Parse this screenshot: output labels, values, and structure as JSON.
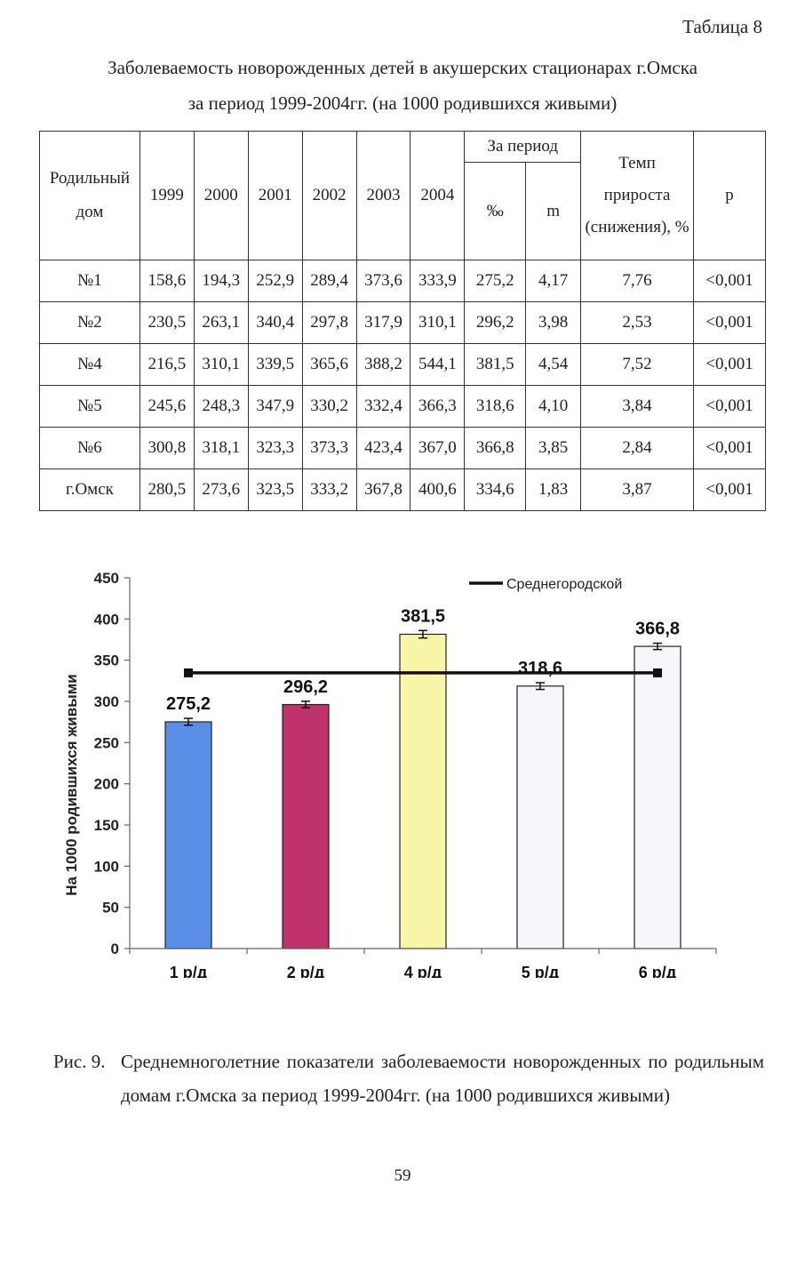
{
  "table_label": "Таблица 8",
  "table_title_line1": "Заболеваемость новорожденных детей в акушерских стационарах  г.Омска",
  "table_title_line2": "за период 1999-2004гг. (на 1000 родившихся живыми)",
  "table": {
    "headers": {
      "hospital": "Родильный дом",
      "years": [
        "1999",
        "2000",
        "2001",
        "2002",
        "2003",
        "2004"
      ],
      "period": "За период",
      "permille": "‰",
      "m": "m",
      "growth_rate": "Темп прироста (снижения), %",
      "p": "p"
    },
    "rows": [
      {
        "name": "№1",
        "values": [
          "158,6",
          "194,3",
          "252,9",
          "289,4",
          "373,6",
          "333,9"
        ],
        "permille": "275,2",
        "m": "4,17",
        "rate": "7,76",
        "p": "<0,001"
      },
      {
        "name": "№2",
        "values": [
          "230,5",
          "263,1",
          "340,4",
          "297,8",
          "317,9",
          "310,1"
        ],
        "permille": "296,2",
        "m": "3,98",
        "rate": "2,53",
        "p": "<0,001"
      },
      {
        "name": "№4",
        "values": [
          "216,5",
          "310,1",
          "339,5",
          "365,6",
          "388,2",
          "544,1"
        ],
        "permille": "381,5",
        "m": "4,54",
        "rate": "7,52",
        "p": "<0,001"
      },
      {
        "name": "№5",
        "values": [
          "245,6",
          "248,3",
          "347,9",
          "330,2",
          "332,4",
          "366,3"
        ],
        "permille": "318,6",
        "m": "4,10",
        "rate": "3,84",
        "p": "<0,001"
      },
      {
        "name": "№6",
        "values": [
          "300,8",
          "318,1",
          "323,3",
          "373,3",
          "423,4",
          "367,0"
        ],
        "permille": "366,8",
        "m": "3,85",
        "rate": "2,84",
        "p": "<0,001"
      },
      {
        "name": "г.Омск",
        "values": [
          "280,5",
          "273,6",
          "323,5",
          "333,2",
          "367,8",
          "400,6"
        ],
        "permille": "334,6",
        "m": "1,83",
        "rate": "3,87",
        "p": "<0,001"
      }
    ]
  },
  "chart_data": {
    "type": "bar",
    "categories": [
      "1 р/д",
      "2 р/д",
      "4 р/д",
      "5 р/д",
      "6 р/д"
    ],
    "values": [
      275.2,
      296.2,
      381.5,
      318.6,
      366.8
    ],
    "value_labels": [
      "275,2",
      "296,2",
      "381,5",
      "318,6",
      "366,8"
    ],
    "errors": [
      4.17,
      3.98,
      4.54,
      4.1,
      3.85
    ],
    "colors": [
      "#5b8ee6",
      "#c0336a",
      "#f7f5a8",
      "#f6f7fd",
      "#f6f7fd"
    ],
    "reference_line": {
      "name": "Среднегородской",
      "value": 334.6
    },
    "title": "",
    "xlabel": "",
    "ylabel": "На 1000 родившихся живыми",
    "ylim": [
      0,
      450
    ],
    "yticks": [
      0,
      50,
      100,
      150,
      200,
      250,
      300,
      350,
      400,
      450
    ],
    "legend_position": "top-right"
  },
  "figure_caption_number": "Рис. 9.",
  "figure_caption_text": "Среднемноголетние показатели заболеваемости новорожденных по родильным домам г.Омска за период 1999-2004гг. (на 1000 родившихся живыми)",
  "page_number": "59"
}
